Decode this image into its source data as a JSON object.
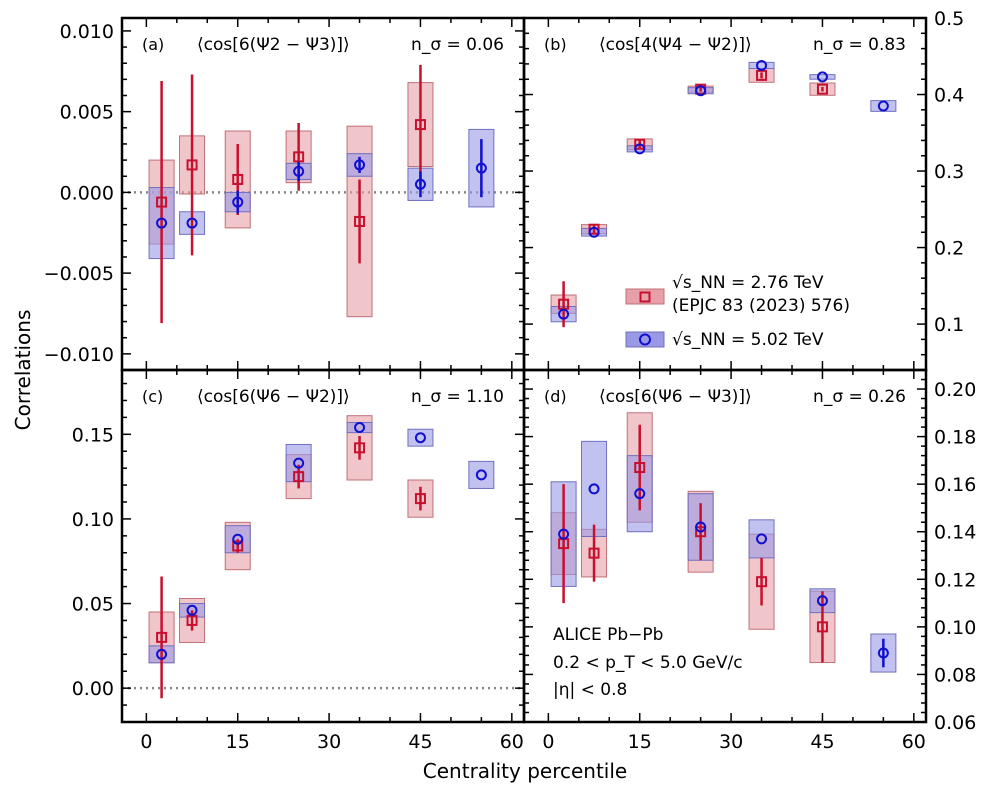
{
  "figure": {
    "ylabel": "Correlations",
    "xlabel": "Centrality percentile",
    "colors": {
      "red": "#c8102e",
      "red_fill": "#e8a0a8",
      "blue": "#1010d0",
      "blue_fill": "#9999e6"
    },
    "legend": {
      "entry1_line1": "√s_NN = 2.76 TeV",
      "entry1_line2": "(EPJC 83 (2023) 576)",
      "entry2": "√s_NN = 5.02 TeV"
    },
    "note": {
      "line1": "ALICE Pb−Pb",
      "line2": "0.2 < p_T < 5.0 GeV/c",
      "line3": "|η| < 0.8"
    }
  },
  "chart_data": [
    {
      "id": "a",
      "type": "scatter",
      "label": "(a)",
      "title": "⟨cos[6(Ψ2 − Ψ3)]⟩",
      "nsigma": "n_σ = 0.06",
      "xlim": [
        -4,
        62
      ],
      "ylim": [
        -0.011,
        0.0108
      ],
      "xticks": [
        0,
        15,
        30,
        45,
        60
      ],
      "yticks": [
        -0.01,
        -0.005,
        0.0,
        0.005,
        0.01
      ],
      "ytick_labels": [
        "−0.010",
        "−0.005",
        "0.000",
        "0.005",
        "0.010"
      ],
      "ytick_side": "left",
      "zero_line": true,
      "series": [
        {
          "name": "2.76 TeV",
          "marker": "square",
          "color": "red",
          "x": [
            2.5,
            7.5,
            15,
            25,
            35,
            45
          ],
          "y": [
            -0.0006,
            0.0017,
            0.0008,
            0.0022,
            -0.0018,
            0.0042
          ],
          "err": [
            0.0075,
            0.0056,
            0.0022,
            0.0021,
            0.0026,
            0.0037
          ],
          "sys": [
            0.0026,
            0.0018,
            0.003,
            0.0016,
            0.0059,
            0.0026
          ]
        },
        {
          "name": "5.02 TeV",
          "marker": "circle",
          "color": "blue",
          "x": [
            2.5,
            7.5,
            15,
            25,
            35,
            45,
            55
          ],
          "y": [
            -0.0019,
            -0.0019,
            -0.0006,
            0.0013,
            0.0017,
            0.0005,
            0.0015
          ],
          "err": [
            0.0,
            0.0,
            0.0007,
            0.0006,
            0.0005,
            0.0008,
            0.0018
          ],
          "sys": [
            0.0022,
            0.0007,
            0.0006,
            0.0005,
            0.0007,
            0.001,
            0.0024
          ]
        }
      ]
    },
    {
      "id": "b",
      "type": "scatter",
      "label": "(b)",
      "title": "⟨cos[4(Ψ4 − Ψ2)]⟩",
      "nsigma": "n_σ = 0.83",
      "xlim": [
        -4,
        62
      ],
      "ylim": [
        0.04,
        0.5
      ],
      "xticks": [
        0,
        15,
        30,
        45,
        60
      ],
      "yticks": [
        0.1,
        0.2,
        0.3,
        0.4,
        0.5
      ],
      "ytick_labels": [
        "0.1",
        "0.2",
        "0.3",
        "0.4",
        "0.5"
      ],
      "ytick_side": "right",
      "zero_line": false,
      "series": [
        {
          "name": "2.76 TeV",
          "marker": "square",
          "color": "red",
          "x": [
            2.5,
            7.5,
            15,
            25,
            35,
            45
          ],
          "y": [
            0.126,
            0.224,
            0.335,
            0.407,
            0.425,
            0.407
          ],
          "err": [
            0.03,
            0.006,
            0.006,
            0.003,
            0.004,
            0.003
          ],
          "sys": [
            0.012,
            0.006,
            0.007,
            0.004,
            0.009,
            0.008
          ]
        },
        {
          "name": "5.02 TeV",
          "marker": "circle",
          "color": "blue",
          "x": [
            2.5,
            7.5,
            15,
            25,
            35,
            45,
            55
          ],
          "y": [
            0.113,
            0.22,
            0.329,
            0.405,
            0.438,
            0.423,
            0.385
          ],
          "err": [
            0.0,
            0.0,
            0.0,
            0.0,
            0.0,
            0.0,
            0.0
          ],
          "sys": [
            0.01,
            0.005,
            0.004,
            0.004,
            0.004,
            0.003,
            0.007
          ]
        }
      ]
    },
    {
      "id": "c",
      "type": "scatter",
      "label": "(c)",
      "title": "⟨cos[6(Ψ6 − Ψ2)]⟩",
      "nsigma": "n_σ = 1.10",
      "xlim": [
        -4,
        62
      ],
      "ylim": [
        -0.02,
        0.188
      ],
      "xticks": [
        0,
        15,
        30,
        45,
        60
      ],
      "yticks": [
        0.0,
        0.05,
        0.1,
        0.15
      ],
      "ytick_labels": [
        "0.00",
        "0.05",
        "0.10",
        "0.15"
      ],
      "ytick_side": "left",
      "zero_line": true,
      "series": [
        {
          "name": "2.76 TeV",
          "marker": "square",
          "color": "red",
          "x": [
            2.5,
            7.5,
            15,
            25,
            35,
            45
          ],
          "y": [
            0.03,
            0.04,
            0.084,
            0.125,
            0.142,
            0.112
          ],
          "err": [
            0.036,
            0.006,
            0.004,
            0.007,
            0.007,
            0.007
          ],
          "sys": [
            0.015,
            0.013,
            0.014,
            0.013,
            0.019,
            0.011
          ]
        },
        {
          "name": "5.02 TeV",
          "marker": "circle",
          "color": "blue",
          "x": [
            2.5,
            7.5,
            15,
            25,
            35,
            45,
            55
          ],
          "y": [
            0.02,
            0.046,
            0.088,
            0.133,
            0.154,
            0.148,
            0.126
          ],
          "err": [
            0.0,
            0.0,
            0.0,
            0.0,
            0.0,
            0.0,
            0.0
          ],
          "sys": [
            0.005,
            0.004,
            0.008,
            0.011,
            0.003,
            0.005,
            0.008
          ]
        }
      ]
    },
    {
      "id": "d",
      "type": "scatter",
      "label": "(d)",
      "title": "⟨cos[6(Ψ6 − Ψ3)]⟩",
      "nsigma": "n_σ = 0.26",
      "xlim": [
        -4,
        62
      ],
      "ylim": [
        0.06,
        0.208
      ],
      "xticks": [
        0,
        15,
        30,
        45,
        60
      ],
      "yticks": [
        0.06,
        0.08,
        0.1,
        0.12,
        0.14,
        0.16,
        0.18,
        0.2
      ],
      "ytick_labels": [
        "0.06",
        "0.08",
        "0.10",
        "0.12",
        "0.14",
        "0.16",
        "0.18",
        "0.20"
      ],
      "ytick_side": "right",
      "zero_line": false,
      "series": [
        {
          "name": "2.76 TeV",
          "marker": "square",
          "color": "red",
          "x": [
            2.5,
            7.5,
            15,
            25,
            35,
            45
          ],
          "y": [
            0.135,
            0.131,
            0.167,
            0.14,
            0.119,
            0.1
          ],
          "err": [
            0.025,
            0.012,
            0.018,
            0.012,
            0.01,
            0.015
          ],
          "sys": [
            0.013,
            0.01,
            0.023,
            0.017,
            0.02,
            0.015
          ]
        },
        {
          "name": "5.02 TeV",
          "marker": "circle",
          "color": "blue",
          "x": [
            2.5,
            7.5,
            15,
            25,
            35,
            45,
            55
          ],
          "y": [
            0.139,
            0.158,
            0.156,
            0.142,
            0.137,
            0.111,
            0.089
          ],
          "err": [
            0.0,
            0.0,
            0.0,
            0.0,
            0.0,
            0.0,
            0.006
          ],
          "sys": [
            0.022,
            0.02,
            0.016,
            0.014,
            0.008,
            0.005,
            0.008
          ]
        }
      ]
    }
  ]
}
